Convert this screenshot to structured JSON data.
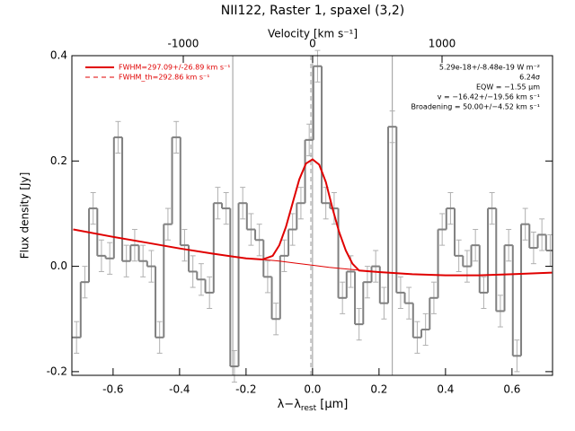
{
  "chart_data": {
    "type": "step",
    "title": "NII122, Raster 1, spaxel (3,2)",
    "x_label_parts": [
      "λ−λ",
      "rest",
      " [μm]"
    ],
    "y_label": "Flux density [Jy]",
    "x2_label": "Velocity [km s⁻¹]",
    "xlim": [
      -0.724,
      0.722
    ],
    "ylim": [
      -0.207,
      0.4
    ],
    "x2lim": [
      -1861,
      1854
    ],
    "xticks": [
      -0.6,
      -0.4,
      -0.2,
      {
        "value": 0,
        "label": "0.0"
      },
      0.2,
      0.4,
      0.6
    ],
    "yticks": [
      -0.2,
      {
        "value": 0,
        "label": "0.0"
      },
      0.2,
      0.4
    ],
    "x2ticks": [
      -1000,
      0,
      1000
    ],
    "vlines": [
      -0.24,
      0,
      0.24
    ],
    "dashed_vlines": [
      -0.005
    ],
    "spectrum": {
      "color": "#808080",
      "error_color": "#b0b0b0",
      "x": [
        -0.71,
        -0.685,
        -0.66,
        -0.635,
        -0.61,
        -0.585,
        -0.56,
        -0.535,
        -0.51,
        -0.485,
        -0.46,
        -0.435,
        -0.41,
        -0.385,
        -0.36,
        -0.335,
        -0.31,
        -0.285,
        -0.26,
        -0.235,
        -0.21,
        -0.185,
        -0.16,
        -0.135,
        -0.11,
        -0.085,
        -0.06,
        -0.035,
        -0.01,
        0.015,
        0.04,
        0.065,
        0.09,
        0.115,
        0.14,
        0.165,
        0.19,
        0.215,
        0.24,
        0.265,
        0.29,
        0.315,
        0.34,
        0.365,
        0.39,
        0.415,
        0.44,
        0.465,
        0.49,
        0.515,
        0.54,
        0.565,
        0.59,
        0.615,
        0.64,
        0.665,
        0.69,
        0.715
      ],
      "values": [
        -0.135,
        -0.03,
        0.11,
        0.02,
        0.015,
        0.245,
        0.01,
        0.04,
        0.01,
        0.0,
        -0.135,
        0.08,
        0.245,
        0.04,
        -0.01,
        -0.025,
        -0.05,
        0.12,
        0.11,
        -0.19,
        0.12,
        0.07,
        0.05,
        -0.02,
        -0.1,
        0.02,
        0.07,
        0.12,
        0.24,
        0.38,
        0.12,
        0.11,
        -0.06,
        -0.01,
        -0.11,
        -0.03,
        0.0,
        -0.07,
        0.265,
        -0.05,
        -0.07,
        -0.135,
        -0.12,
        -0.06,
        0.07,
        0.11,
        0.02,
        0.0,
        0.04,
        -0.05,
        0.11,
        -0.085,
        0.04,
        -0.17,
        0.08,
        0.035,
        0.06,
        0.03
      ],
      "errors": [
        0.03,
        0.03,
        0.03,
        0.03,
        0.03,
        0.03,
        0.03,
        0.03,
        0.03,
        0.03,
        0.03,
        0.03,
        0.03,
        0.03,
        0.03,
        0.03,
        0.03,
        0.03,
        0.03,
        0.03,
        0.03,
        0.03,
        0.03,
        0.03,
        0.03,
        0.03,
        0.03,
        0.03,
        0.03,
        0.03,
        0.03,
        0.03,
        0.03,
        0.03,
        0.03,
        0.03,
        0.03,
        0.03,
        0.03,
        0.03,
        0.03,
        0.03,
        0.03,
        0.03,
        0.03,
        0.03,
        0.03,
        0.03,
        0.03,
        0.03,
        0.03,
        0.03,
        0.03,
        0.03,
        0.03,
        0.03,
        0.03,
        0.03
      ]
    },
    "series": [
      {
        "name": "FWHM=297.09+/-26.89 km s⁻¹",
        "color": "#e00000",
        "dash": false,
        "x": [
          -0.72,
          -0.6,
          -0.5,
          -0.4,
          -0.3,
          -0.2,
          -0.15,
          -0.12,
          -0.1,
          -0.08,
          -0.06,
          -0.04,
          -0.02,
          0.0,
          0.02,
          0.04,
          0.06,
          0.08,
          0.1,
          0.12,
          0.14,
          0.2,
          0.3,
          0.4,
          0.5,
          0.6,
          0.72
        ],
        "values": [
          0.07,
          0.056,
          0.045,
          0.034,
          0.024,
          0.015,
          0.013,
          0.02,
          0.04,
          0.075,
          0.12,
          0.165,
          0.195,
          0.203,
          0.193,
          0.16,
          0.11,
          0.065,
          0.03,
          0.005,
          -0.008,
          -0.011,
          -0.015,
          -0.017,
          -0.017,
          -0.015,
          -0.012
        ]
      },
      {
        "name": "FWHM_th=292.86 km s⁻¹",
        "color": "#e00000",
        "dash": true,
        "x": [
          -0.15,
          -0.1,
          -0.05,
          0.0,
          0.05,
          0.1,
          0.15
        ],
        "values": [
          0.013,
          0.01,
          0.006,
          0.002,
          -0.002,
          -0.005,
          -0.008
        ]
      }
    ],
    "annotations": [
      "5.29e-18+/-8.48e-19 W m⁻²",
      "6.24σ",
      "EQW = −1.55 μm",
      "v = −16.42+/−19.56 km s⁻¹",
      "Broadening = 50.00+/−4.52 km s⁻¹"
    ]
  }
}
